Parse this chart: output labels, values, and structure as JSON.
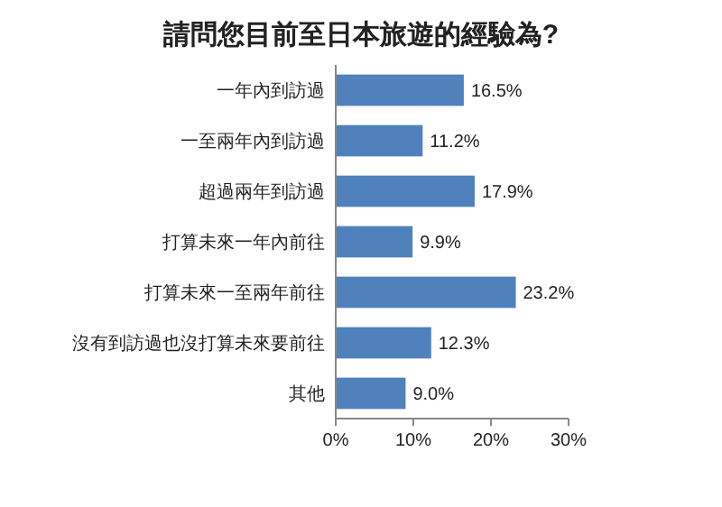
{
  "chart_data": {
    "type": "bar",
    "orientation": "horizontal",
    "title": "請問您目前至日本旅遊的經驗為?",
    "categories": [
      "一年內到訪過",
      "一至兩年內到訪過",
      "超過兩年到訪過",
      "打算未來一年內前往",
      "打算未來一至兩年前往",
      "沒有到訪過也沒打算未來要前往",
      "其他"
    ],
    "values": [
      16.5,
      11.2,
      17.9,
      9.9,
      23.2,
      12.3,
      9.0
    ],
    "value_labels": [
      "16.5%",
      "11.2%",
      "17.9%",
      "9.9%",
      "23.2%",
      "12.3%",
      "9.0%"
    ],
    "color": "#4f81bd",
    "xlim": [
      0,
      30
    ],
    "xticks": [
      {
        "value": 0,
        "label": "0%"
      },
      {
        "value": 10,
        "label": "10%"
      },
      {
        "value": 20,
        "label": "20%"
      },
      {
        "value": 30,
        "label": "30%"
      }
    ],
    "grid": false
  }
}
